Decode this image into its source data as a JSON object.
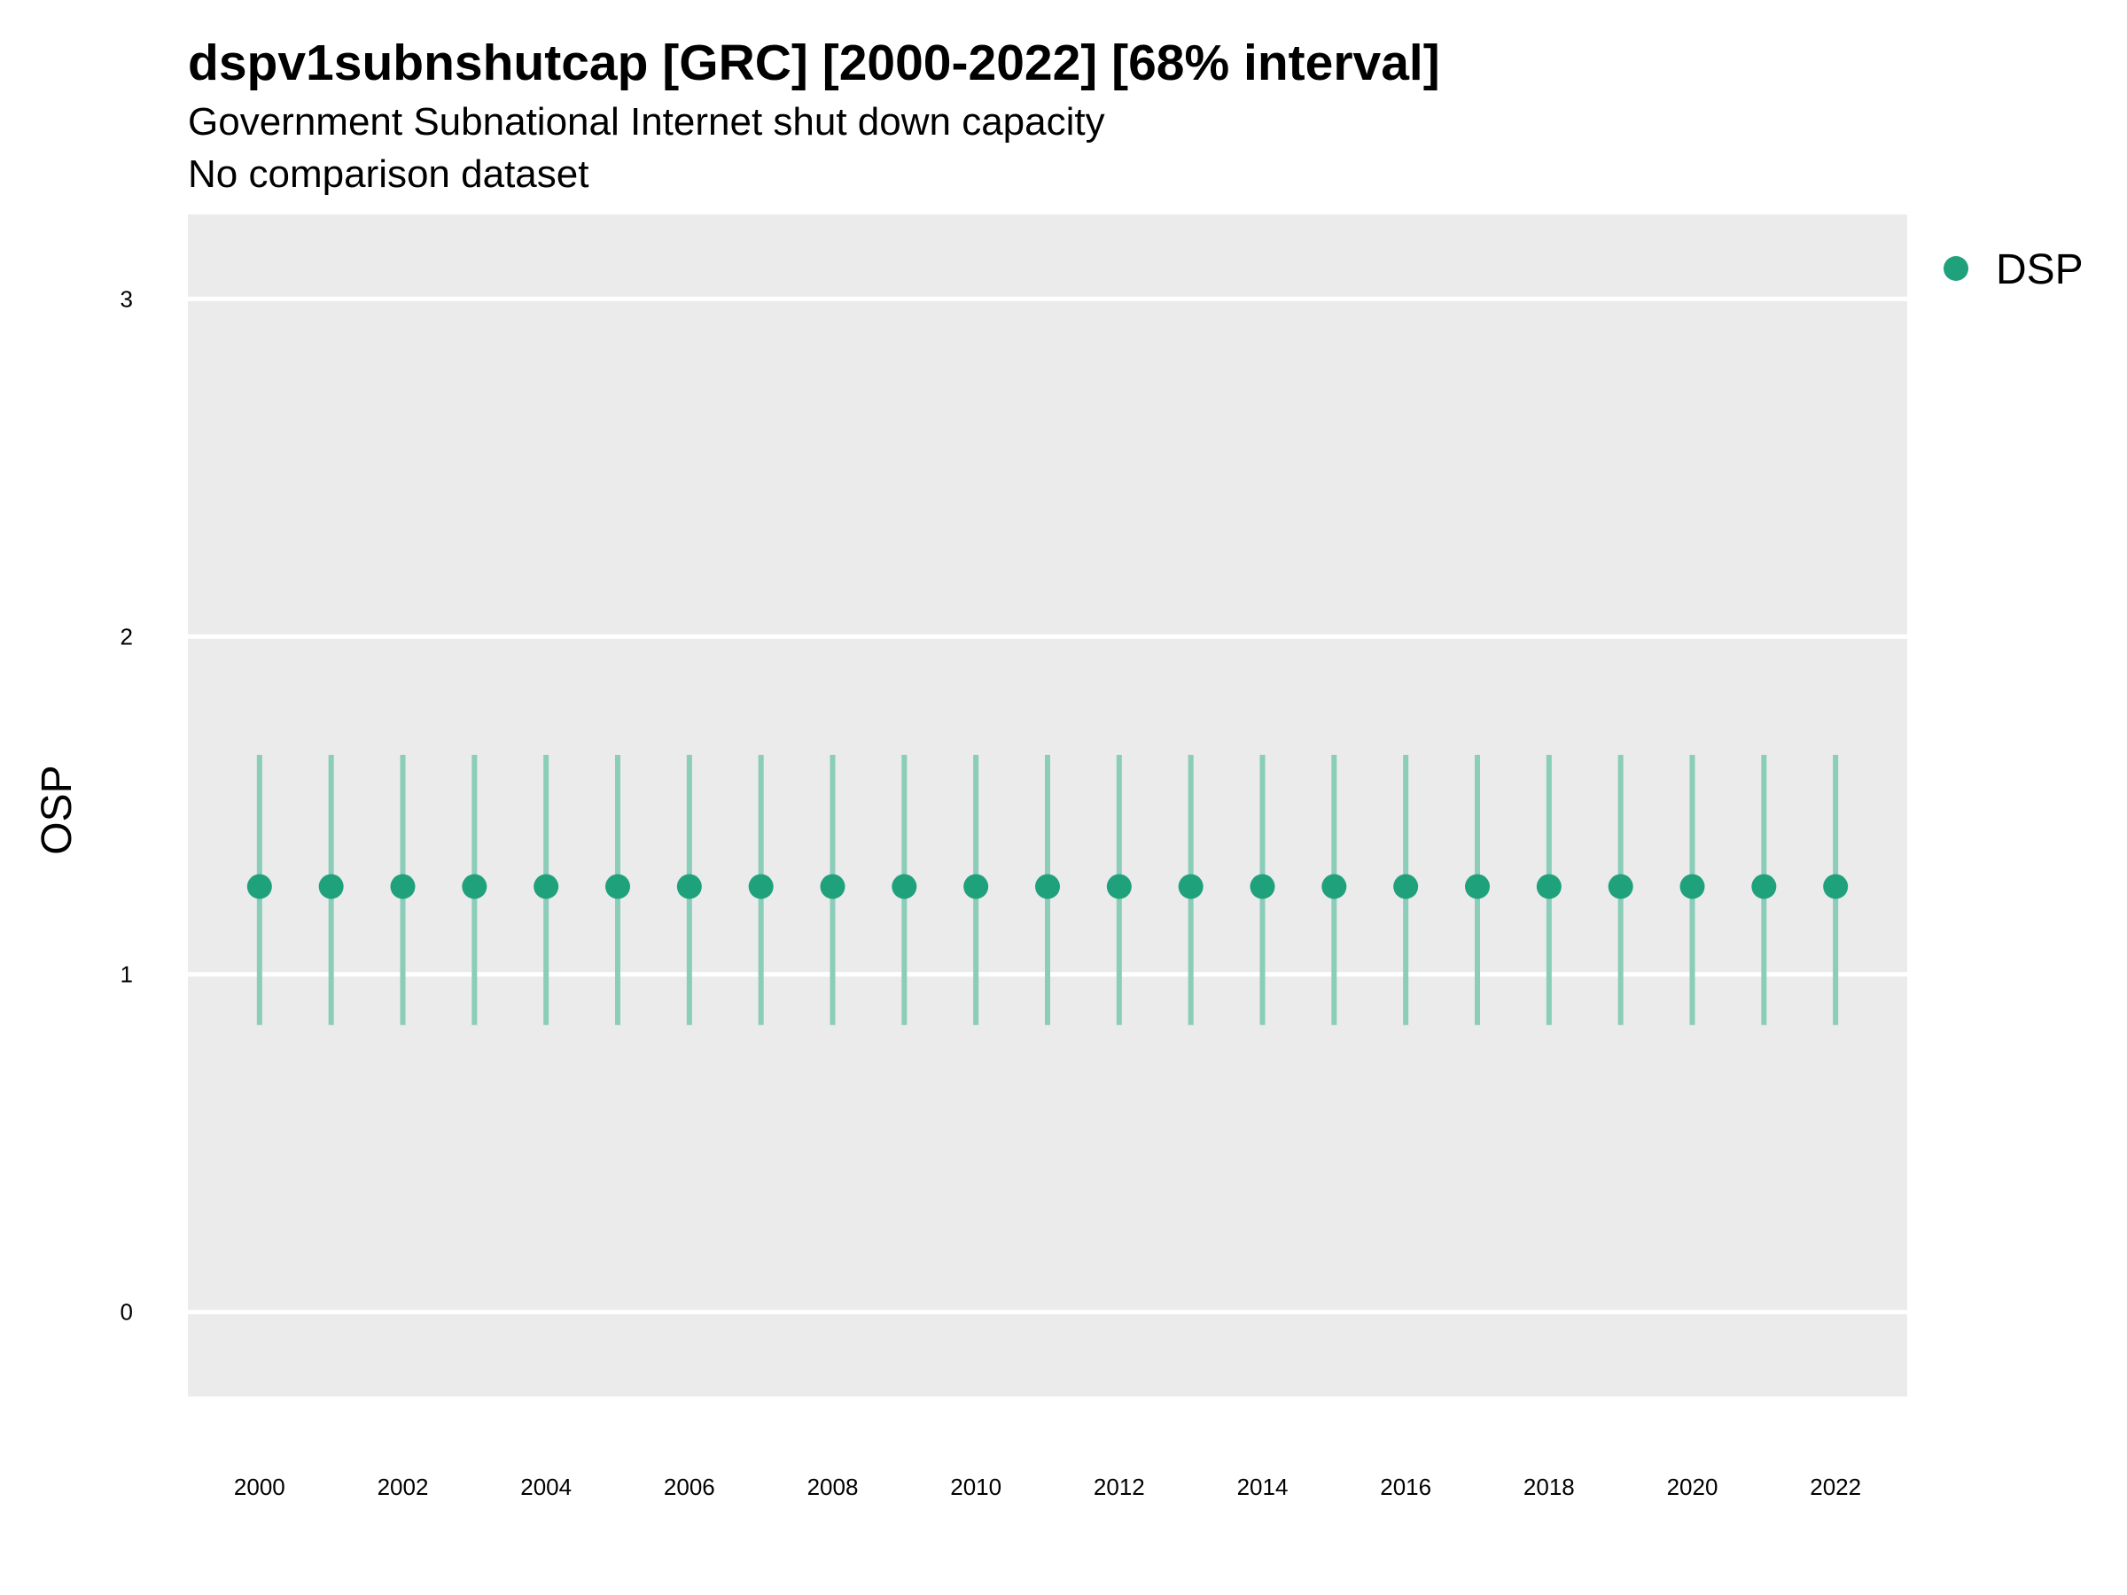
{
  "header": {
    "title": "dspv1subnshutcap [GRC] [2000-2022] [68% interval]",
    "subtitle1": "Government Subnational Internet shut down capacity",
    "subtitle2": "No comparison dataset"
  },
  "chart_data": {
    "type": "scatter",
    "title": "dspv1subnshutcap [GRC] [2000-2022] [68% interval]",
    "subtitle": "Government Subnational Internet shut down capacity",
    "xlabel": "",
    "ylabel": "OSP",
    "xlim": [
      1999,
      2023
    ],
    "ylim": [
      -0.25,
      3.25
    ],
    "x_ticks": [
      2000,
      2002,
      2004,
      2006,
      2008,
      2010,
      2012,
      2014,
      2016,
      2018,
      2020,
      2022
    ],
    "y_ticks": [
      0,
      1,
      2,
      3
    ],
    "grid": true,
    "legend_position": "top-right",
    "colors": {
      "panel": "#EBEBEB",
      "point": "#1FA27C",
      "interval": "#8ACDB8",
      "grid": "#FFFFFF"
    },
    "series": [
      {
        "name": "DSP",
        "x": [
          2000,
          2001,
          2002,
          2003,
          2004,
          2005,
          2006,
          2007,
          2008,
          2009,
          2010,
          2011,
          2012,
          2013,
          2014,
          2015,
          2016,
          2017,
          2018,
          2019,
          2020,
          2021,
          2022
        ],
        "y": [
          1.26,
          1.26,
          1.26,
          1.26,
          1.26,
          1.26,
          1.26,
          1.26,
          1.26,
          1.26,
          1.26,
          1.26,
          1.26,
          1.26,
          1.26,
          1.26,
          1.26,
          1.26,
          1.26,
          1.26,
          1.26,
          1.26,
          1.26
        ],
        "lower": [
          0.85,
          0.85,
          0.85,
          0.85,
          0.85,
          0.85,
          0.85,
          0.85,
          0.85,
          0.85,
          0.85,
          0.85,
          0.85,
          0.85,
          0.85,
          0.85,
          0.85,
          0.85,
          0.85,
          0.85,
          0.85,
          0.85,
          0.85
        ],
        "upper": [
          1.65,
          1.65,
          1.65,
          1.65,
          1.65,
          1.65,
          1.65,
          1.65,
          1.65,
          1.65,
          1.65,
          1.65,
          1.65,
          1.65,
          1.65,
          1.65,
          1.65,
          1.65,
          1.65,
          1.65,
          1.65,
          1.65,
          1.65
        ]
      }
    ]
  }
}
